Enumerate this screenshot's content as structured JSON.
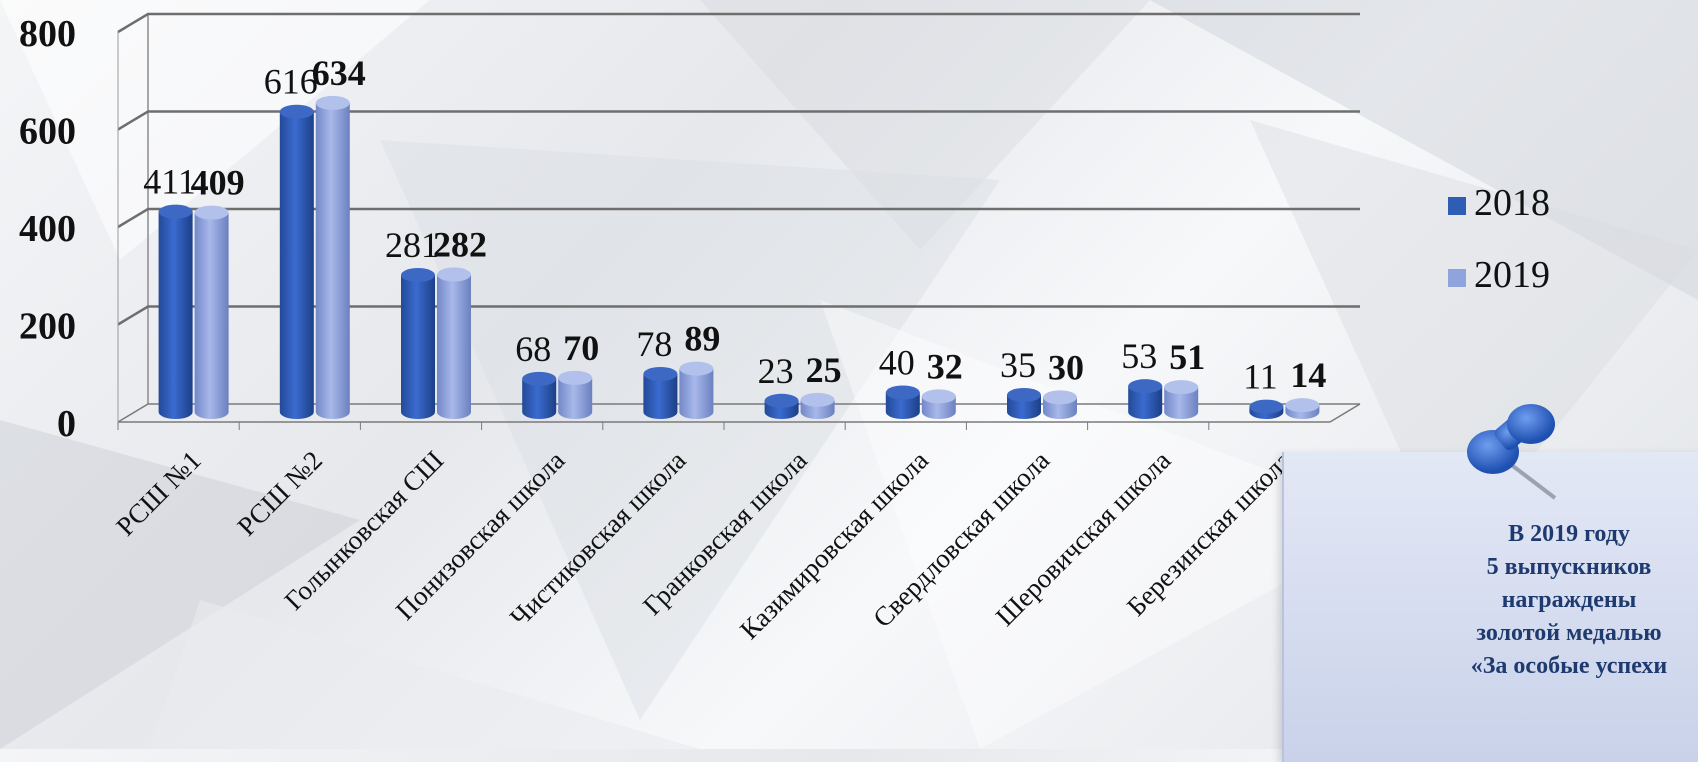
{
  "chart_data": {
    "type": "bar",
    "categories": [
      "РСШ №1",
      "РСШ №2",
      "Голынковская СШ",
      "Понизовская школа",
      "Чистиковская школа",
      "Гранковская школа",
      "Казимировская школа",
      "Свердловская школа",
      "Шеровичская школа",
      "Березинская школа"
    ],
    "series": [
      {
        "name": "2018",
        "values": [
          411,
          616,
          281,
          68,
          78,
          23,
          40,
          35,
          53,
          11
        ],
        "color": "#2f5cb5"
      },
      {
        "name": "2019",
        "values": [
          409,
          634,
          282,
          70,
          89,
          25,
          32,
          30,
          51,
          14
        ],
        "color": "#8fa3dc"
      }
    ],
    "ylim": [
      0,
      800
    ],
    "yticks": [
      "0",
      "200",
      "400",
      "600",
      "800"
    ],
    "grid": true,
    "legend_position": "right",
    "title": "",
    "xlabel": "",
    "ylabel": ""
  },
  "note": {
    "lines": [
      "В 2019 году",
      "5 выпускников",
      "награждены",
      "золотой медалью",
      "«За особые успехи"
    ],
    "icon": "pushpin-icon"
  }
}
